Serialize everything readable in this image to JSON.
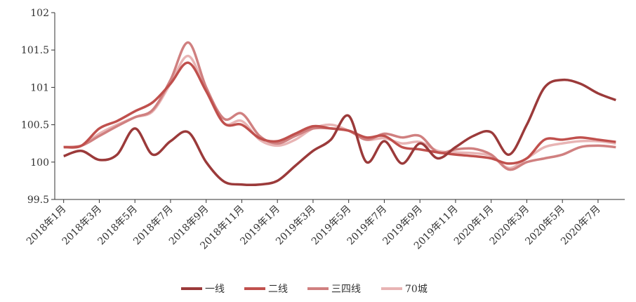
{
  "chart_data": {
    "type": "line",
    "categories": [
      "2018年1月",
      null,
      "2018年3月",
      null,
      "2018年5月",
      null,
      "2018年7月",
      null,
      "2018年9月",
      null,
      "2018年11月",
      null,
      "2019年1月",
      null,
      "2019年3月",
      null,
      "2019年5月",
      null,
      "2019年7月",
      null,
      "2019年9月",
      null,
      "2019年11月",
      null,
      "2020年1月",
      null,
      "2020年3月",
      null,
      "2020年5月",
      null,
      "2020年7月",
      null
    ],
    "ylim": [
      99.5,
      102
    ],
    "yticks": [
      99.5,
      100,
      100.5,
      101,
      101.5,
      102
    ],
    "series": [
      {
        "name": "一线",
        "color": "#9b3a3a",
        "values": [
          100.08,
          100.15,
          100.03,
          100.1,
          100.45,
          100.1,
          100.28,
          100.4,
          100.0,
          99.74,
          99.7,
          99.7,
          99.75,
          99.95,
          100.15,
          100.3,
          100.62,
          100.0,
          100.28,
          99.98,
          100.25,
          100.05,
          100.2,
          100.35,
          100.4,
          100.1,
          100.5,
          101.0,
          101.1,
          101.05,
          100.92,
          100.83
        ]
      },
      {
        "name": "二线",
        "color": "#c0504d",
        "values": [
          100.2,
          100.22,
          100.45,
          100.55,
          100.68,
          100.8,
          101.05,
          101.33,
          100.95,
          100.52,
          100.5,
          100.32,
          100.28,
          100.38,
          100.48,
          100.45,
          100.42,
          100.33,
          100.35,
          100.2,
          100.17,
          100.13,
          100.1,
          100.08,
          100.05,
          99.98,
          100.05,
          100.3,
          100.3,
          100.33,
          100.3,
          100.27
        ]
      },
      {
        "name": "三四线",
        "color": "#d08080",
        "values": [
          100.2,
          100.22,
          100.35,
          100.48,
          100.6,
          100.7,
          101.1,
          101.6,
          101.0,
          100.58,
          100.65,
          100.35,
          100.25,
          100.35,
          100.45,
          100.45,
          100.42,
          100.3,
          100.38,
          100.33,
          100.35,
          100.13,
          100.17,
          100.18,
          100.1,
          99.9,
          100.0,
          100.05,
          100.1,
          100.2,
          100.22,
          100.2
        ]
      },
      {
        "name": "70城",
        "color": "#e8b4b4",
        "values": [
          100.2,
          100.22,
          100.38,
          100.5,
          100.6,
          100.68,
          101.05,
          101.42,
          100.95,
          100.52,
          100.55,
          100.3,
          100.22,
          100.3,
          100.45,
          100.5,
          100.42,
          100.3,
          100.32,
          100.25,
          100.27,
          100.15,
          100.13,
          100.12,
          100.08,
          99.92,
          100.05,
          100.2,
          100.25,
          100.28,
          100.28,
          100.25
        ]
      }
    ]
  }
}
